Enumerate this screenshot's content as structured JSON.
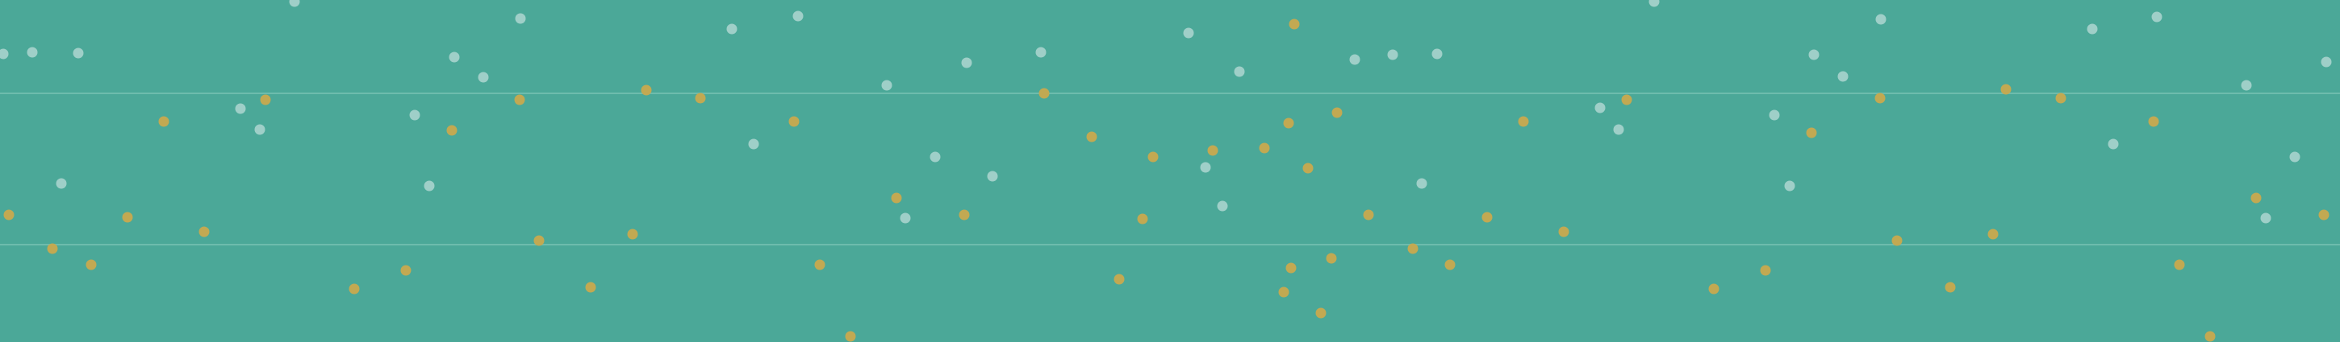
{
  "colors": {
    "background": "#4ba898",
    "grid_line": "#7cc5b7",
    "dot_light": "#9fcfc8",
    "dot_gold": "#c2a952"
  },
  "pattern": {
    "description_name": "dotted-teal-background",
    "rows": 2,
    "dot_styles": [
      "light",
      "gold"
    ]
  }
}
